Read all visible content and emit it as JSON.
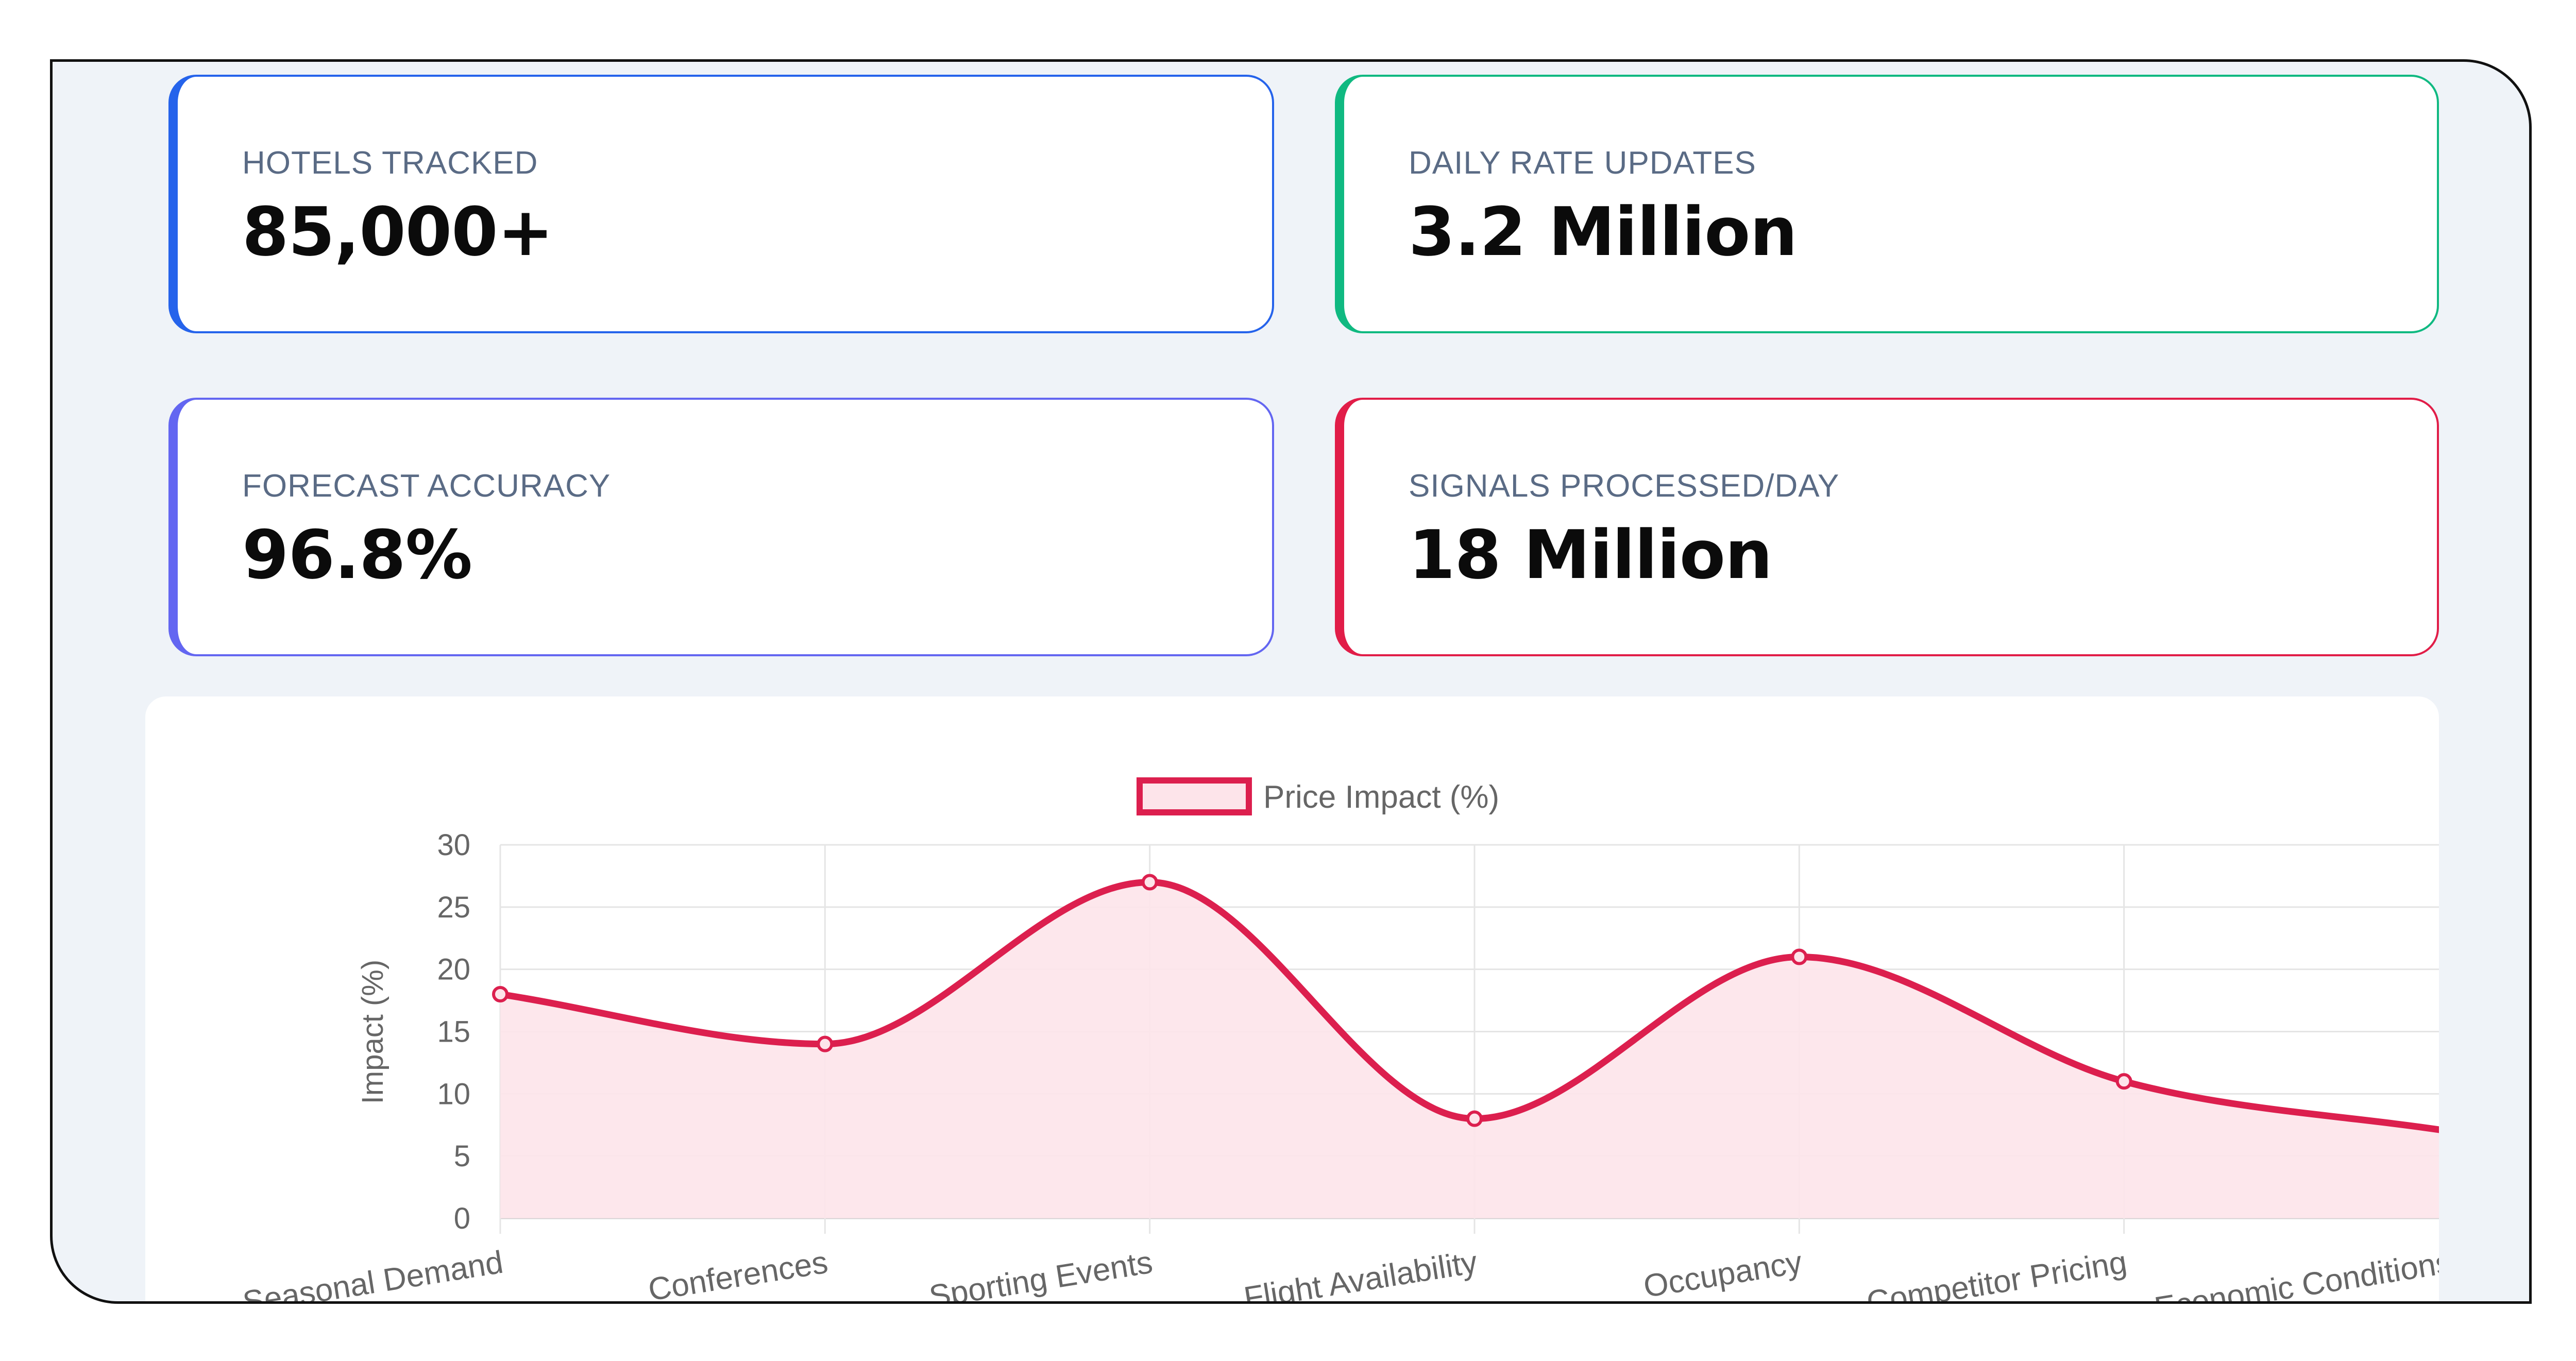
{
  "stats": [
    {
      "label": "HOTELS TRACKED",
      "value": "85,000+"
    },
    {
      "label": "DAILY RATE UPDATES",
      "value": "3.2 Million"
    },
    {
      "label": "FORECAST ACCURACY",
      "value": "96.8%"
    },
    {
      "label": "SIGNALS PROCESSED/DAY",
      "value": "18 Million"
    }
  ],
  "colors": {
    "hotels": "#2563eb",
    "rates": "#10b981",
    "forecast": "#6366f1",
    "signals": "#e11d48",
    "line": "#dc1f4e",
    "fill": "#fde4ea"
  },
  "chart_data": {
    "type": "area",
    "categories": [
      "Seasonal Demand",
      "Conferences",
      "Sporting Events",
      "Flight Availability",
      "Occupancy",
      "Competitor Pricing",
      "Economic Conditions"
    ],
    "series": [
      {
        "name": "Price Impact (%)",
        "values": [
          18,
          14,
          27,
          8,
          21,
          11,
          7
        ]
      }
    ],
    "ylabel": "Impact (%)",
    "xlabel": "",
    "ylim": [
      0,
      30
    ],
    "yticks": [
      0,
      5,
      10,
      15,
      20,
      25,
      30
    ],
    "grid": true,
    "legend": "top-center",
    "smooth": true
  }
}
